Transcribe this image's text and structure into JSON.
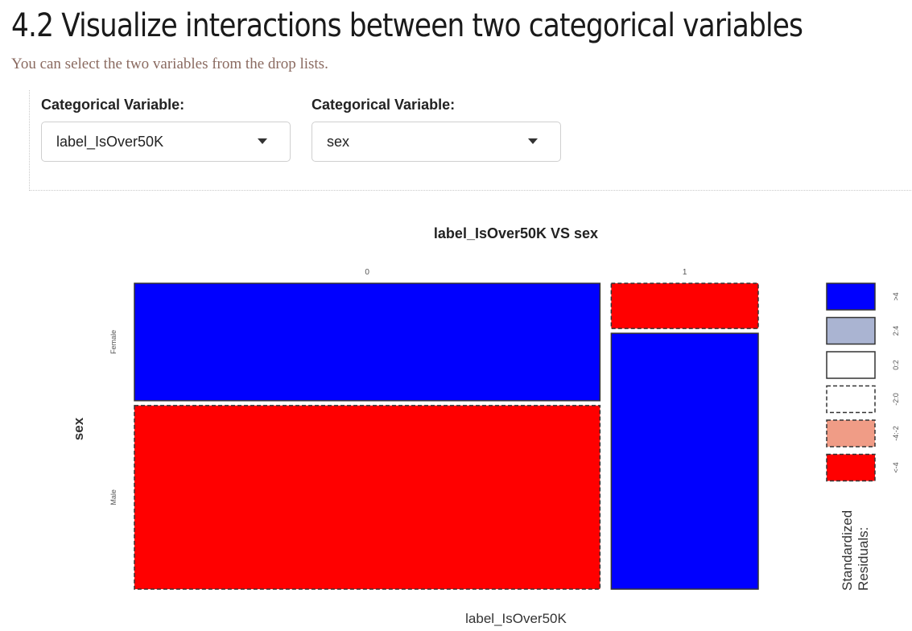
{
  "header": {
    "title": "4.2 Visualize interactions between two categorical variables",
    "subtitle": "You can select the two variables from the drop lists."
  },
  "controls": [
    {
      "label": "Categorical Variable:",
      "value": "label_IsOver50K"
    },
    {
      "label": "Categorical Variable:",
      "value": "sex"
    }
  ],
  "chart_data": {
    "type": "mosaic",
    "title": "label_IsOver50K VS sex",
    "xlabel": "label_IsOver50K",
    "ylabel": "sex",
    "x_categories": [
      "0",
      "1"
    ],
    "y_categories": [
      "Female",
      "Male"
    ],
    "x_proportions": [
      0.76,
      0.24
    ],
    "cells": [
      {
        "x": "0",
        "y": "Female",
        "proportion": 0.39,
        "residual_class": ">4"
      },
      {
        "x": "0",
        "y": "Male",
        "proportion": 0.61,
        "residual_class": "<-4"
      },
      {
        "x": "1",
        "y": "Female",
        "proportion": 0.15,
        "residual_class": "<-4"
      },
      {
        "x": "1",
        "y": "Male",
        "proportion": 0.85,
        "residual_class": ">4"
      }
    ],
    "legend": {
      "title": "Standardized Residuals:",
      "entries": [
        {
          "label": ">4",
          "fill": "#0000ff",
          "dashed": false
        },
        {
          "label": "2:4",
          "fill": "#aab4d2",
          "dashed": false
        },
        {
          "label": "0:2",
          "fill": "#ffffff",
          "dashed": false
        },
        {
          "label": "-2:0",
          "fill": "#ffffff",
          "dashed": true
        },
        {
          "label": "-4:-2",
          "fill": "#f09c86",
          "dashed": true
        },
        {
          "label": "<-4",
          "fill": "#ff0000",
          "dashed": true
        }
      ]
    }
  }
}
